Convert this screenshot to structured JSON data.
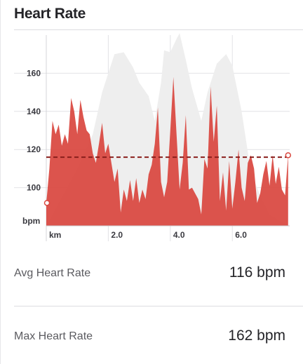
{
  "card": {
    "title": "Heart Rate"
  },
  "chart_data": {
    "type": "area",
    "title": "Heart Rate",
    "x_unit_label": "km",
    "y_unit_label": "bpm",
    "x_ticks": [
      "2.0",
      "4.0",
      "6.0"
    ],
    "y_ticks": [
      100,
      120,
      140,
      160
    ],
    "xlim": [
      0,
      7.85
    ],
    "ylim": [
      80,
      180
    ],
    "grid": true,
    "average_line": 116,
    "series": [
      {
        "color": "#d9473f",
        "x": [
          0,
          0.1,
          0.2,
          0.3,
          0.4,
          0.5,
          0.6,
          0.7,
          0.8,
          0.9,
          1.0,
          1.1,
          1.2,
          1.3,
          1.4,
          1.5,
          1.6,
          1.7,
          1.8,
          1.9,
          2.0,
          2.1,
          2.2,
          2.3,
          2.4,
          2.5,
          2.6,
          2.7,
          2.8,
          2.9,
          3.0,
          3.1,
          3.2,
          3.3,
          3.4,
          3.5,
          3.6,
          3.7,
          3.8,
          3.9,
          4.0,
          4.1,
          4.2,
          4.3,
          4.4,
          4.5,
          4.6,
          4.7,
          4.8,
          4.9,
          5.0,
          5.1,
          5.2,
          5.3,
          5.4,
          5.5,
          5.6,
          5.7,
          5.8,
          5.9,
          6.0,
          6.1,
          6.2,
          6.3,
          6.4,
          6.5,
          6.6,
          6.7,
          6.8,
          6.9,
          7.0,
          7.1,
          7.2,
          7.3,
          7.4,
          7.5,
          7.6,
          7.7,
          7.8
        ],
        "values": [
          92,
          110,
          135,
          128,
          133,
          122,
          128,
          123,
          147,
          140,
          128,
          146,
          137,
          130,
          128,
          118,
          113,
          123,
          134,
          118,
          123,
          113,
          103,
          110,
          87,
          99,
          93,
          104,
          93,
          105,
          92,
          99,
          94,
          107,
          112,
          123,
          142,
          103,
          95,
          103,
          130,
          158,
          128,
          99,
          113,
          138,
          99,
          100,
          97,
          94,
          86,
          115,
          110,
          153,
          124,
          143,
          93,
          108,
          88,
          114,
          89,
          103,
          120,
          100,
          93,
          113,
          117,
          110,
          92,
          97,
          107,
          114,
          101,
          117,
          102,
          111,
          99,
          96,
          117
        ]
      }
    ],
    "background_series": {
      "color": "#eeeeee",
      "x": [
        0,
        0.5,
        1.0,
        1.5,
        1.8,
        2.0,
        2.2,
        2.5,
        2.8,
        3.0,
        3.3,
        3.5,
        3.7,
        3.8,
        4.0,
        4.2,
        4.3,
        4.5,
        4.7,
        5.0,
        5.2,
        5.5,
        5.8,
        6.0,
        6.3,
        6.6,
        6.9,
        7.2,
        7.6,
        7.85
      ],
      "values": [
        80,
        95,
        110,
        128,
        150,
        160,
        170,
        171,
        163,
        155,
        148,
        135,
        155,
        172,
        171,
        178,
        181,
        167,
        152,
        135,
        150,
        165,
        170,
        164,
        140,
        108,
        96,
        86,
        82,
        80
      ]
    }
  },
  "stats": {
    "avg": {
      "label": "Avg Heart Rate",
      "value": "116 bpm"
    },
    "max": {
      "label": "Max Heart Rate",
      "value": "162 bpm"
    }
  }
}
